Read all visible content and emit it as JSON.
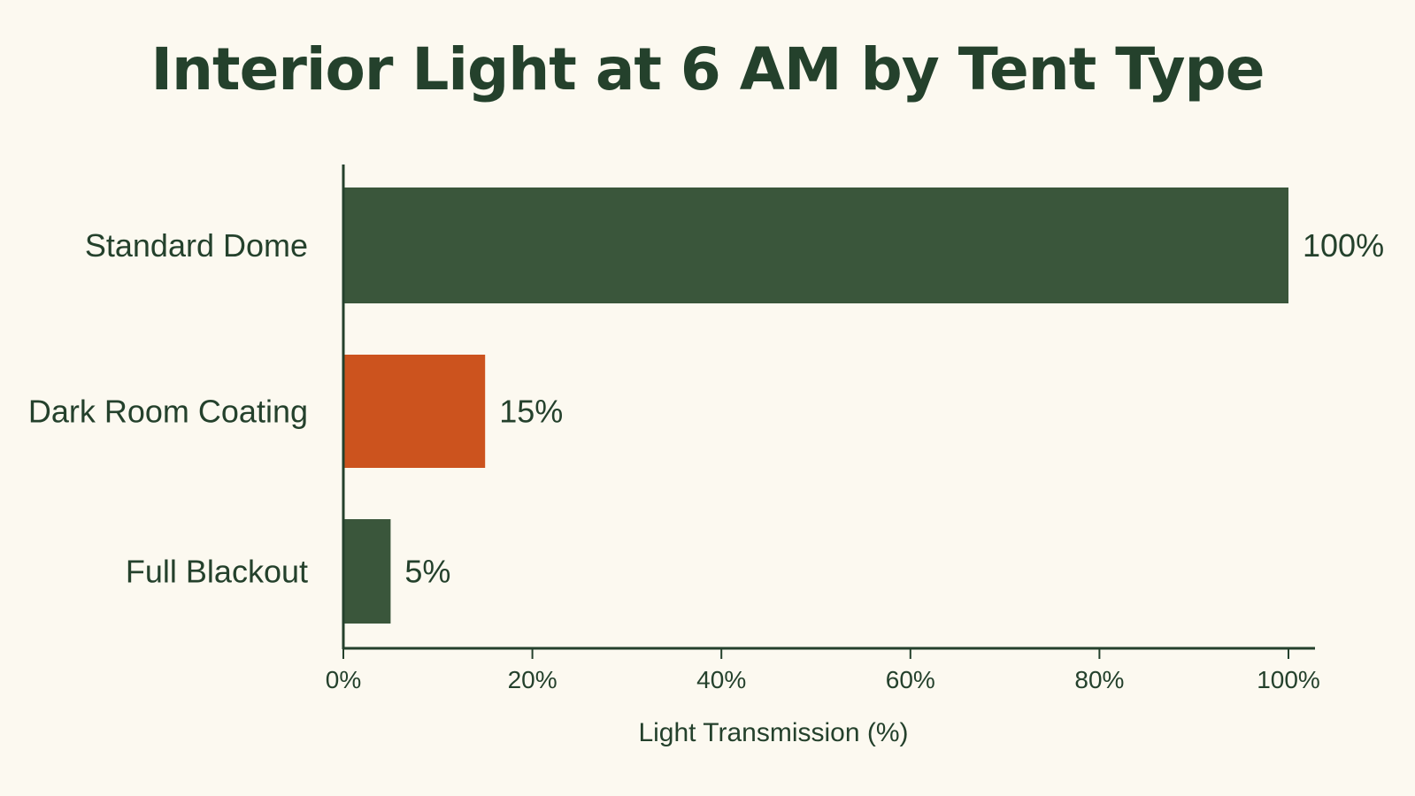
{
  "chart_data": {
    "type": "bar",
    "orientation": "horizontal",
    "title": "Interior Light at 6 AM by Tent Type",
    "xlabel": "Light Transmission (%)",
    "ylabel": "",
    "categories": [
      "Standard Dome",
      "Dark Room Coating",
      "Full Blackout"
    ],
    "values": [
      100,
      15,
      5
    ],
    "value_labels": [
      "100%",
      "15%",
      "5%"
    ],
    "colors": [
      "#3a563b",
      "#cc531e",
      "#3a563b"
    ],
    "xlim": [
      0,
      100
    ],
    "xticks": [
      0,
      20,
      40,
      60,
      80,
      100
    ],
    "xtick_labels": [
      "0%",
      "20%",
      "40%",
      "60%",
      "80%",
      "100%"
    ],
    "grid": false,
    "legend": "none",
    "axis_color": "#24412c",
    "background": "#fcf9f0"
  }
}
